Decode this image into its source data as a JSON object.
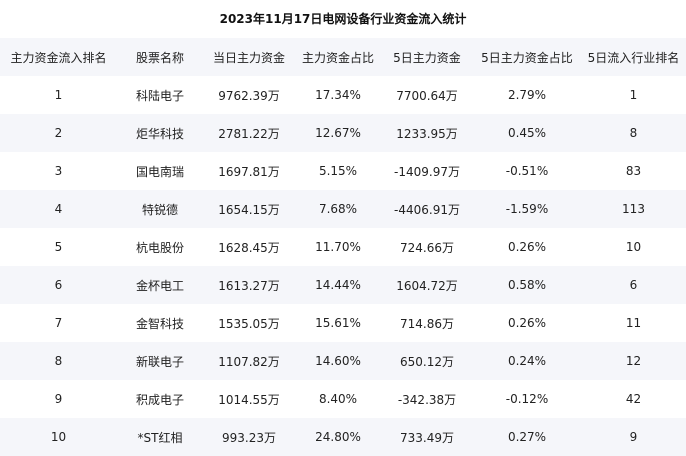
{
  "title": "2023年11月17日电网设备行业资金流入统计",
  "table": {
    "headers": [
      "主力资金流入排名",
      "股票名称",
      "当日主力资金",
      "主力资金占比",
      "5日主力资金",
      "5日主力资金占比",
      "5日流入行业排名"
    ],
    "rows": [
      [
        "1",
        "科陆电子",
        "9762.39万",
        "17.34%",
        "7700.64万",
        "2.79%",
        "1"
      ],
      [
        "2",
        "炬华科技",
        "2781.22万",
        "12.67%",
        "1233.95万",
        "0.45%",
        "8"
      ],
      [
        "3",
        "国电南瑞",
        "1697.81万",
        "5.15%",
        "-1409.97万",
        "-0.51%",
        "83"
      ],
      [
        "4",
        "特锐德",
        "1654.15万",
        "7.68%",
        "-4406.91万",
        "-1.59%",
        "113"
      ],
      [
        "5",
        "杭电股份",
        "1628.45万",
        "11.70%",
        "724.66万",
        "0.26%",
        "10"
      ],
      [
        "6",
        "金杯电工",
        "1613.27万",
        "14.44%",
        "1604.72万",
        "0.58%",
        "6"
      ],
      [
        "7",
        "金智科技",
        "1535.05万",
        "15.61%",
        "714.86万",
        "0.26%",
        "11"
      ],
      [
        "8",
        "新联电子",
        "1107.82万",
        "14.60%",
        "650.12万",
        "0.24%",
        "12"
      ],
      [
        "9",
        "积成电子",
        "1014.55万",
        "8.40%",
        "-342.38万",
        "-0.12%",
        "42"
      ],
      [
        "10",
        "*ST红相",
        "993.23万",
        "24.80%",
        "733.49万",
        "0.27%",
        "9"
      ]
    ]
  }
}
